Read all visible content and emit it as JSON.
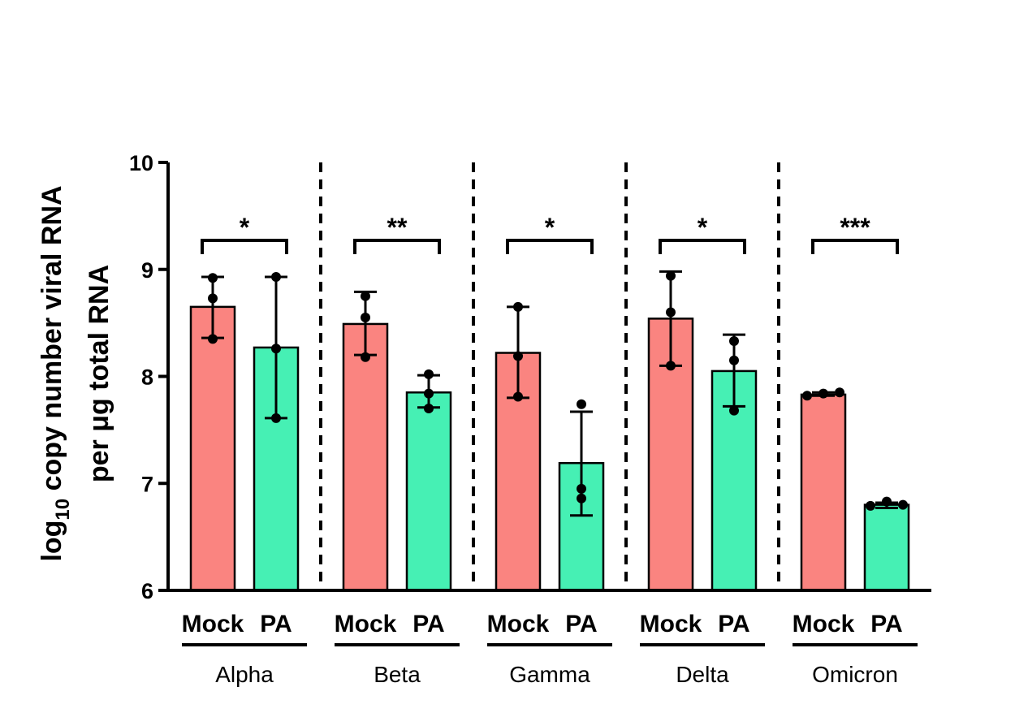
{
  "chart_data": {
    "type": "bar",
    "title": "",
    "ylabel_line1_prefix": "log",
    "ylabel_line1_sub": "10",
    "ylabel_line1_rest": " copy number viral RNA",
    "ylabel_line2": "per μg total RNA",
    "ylim": [
      6,
      10
    ],
    "y_ticks": [
      "6",
      "7",
      "8",
      "9",
      "10"
    ],
    "conditions": [
      "Mock",
      "PA"
    ],
    "colors": {
      "Mock": "#fa8480",
      "PA": "#46f0b4"
    },
    "groups": [
      {
        "name": "Alpha",
        "significance": "*",
        "bars": [
          {
            "condition": "Mock",
            "mean": 8.65,
            "err_low": 8.36,
            "err_high": 8.93,
            "points": [
              8.92,
              8.73,
              8.35
            ]
          },
          {
            "condition": "PA",
            "mean": 8.27,
            "err_low": 7.61,
            "err_high": 8.93,
            "points": [
              8.93,
              8.26,
              7.61
            ]
          }
        ]
      },
      {
        "name": "Beta",
        "significance": "**",
        "bars": [
          {
            "condition": "Mock",
            "mean": 8.49,
            "err_low": 8.2,
            "err_high": 8.79,
            "points": [
              8.75,
              8.55,
              8.18
            ]
          },
          {
            "condition": "PA",
            "mean": 7.85,
            "err_low": 7.71,
            "err_high": 8.01,
            "points": [
              8.02,
              7.84,
              7.7
            ]
          }
        ]
      },
      {
        "name": "Gamma",
        "significance": "*",
        "bars": [
          {
            "condition": "Mock",
            "mean": 8.22,
            "err_low": 7.8,
            "err_high": 8.65,
            "points": [
              8.65,
              8.19,
              7.81
            ]
          },
          {
            "condition": "PA",
            "mean": 7.19,
            "err_low": 6.7,
            "err_high": 7.67,
            "points": [
              7.74,
              6.95,
              6.86
            ]
          }
        ]
      },
      {
        "name": "Delta",
        "significance": "*",
        "bars": [
          {
            "condition": "Mock",
            "mean": 8.54,
            "err_low": 8.1,
            "err_high": 8.98,
            "points": [
              8.94,
              8.6,
              8.1
            ]
          },
          {
            "condition": "PA",
            "mean": 8.05,
            "err_low": 7.72,
            "err_high": 8.39,
            "points": [
              8.33,
              8.15,
              7.68
            ]
          }
        ]
      },
      {
        "name": "Omicron",
        "significance": "***",
        "bars": [
          {
            "condition": "Mock",
            "mean": 7.83,
            "err_low": 7.82,
            "err_high": 7.85,
            "points": [
              7.82,
              7.84,
              7.85
            ]
          },
          {
            "condition": "PA",
            "mean": 6.8,
            "err_low": 6.77,
            "err_high": 6.82,
            "points": [
              6.79,
              6.83,
              6.8
            ]
          }
        ]
      }
    ]
  }
}
